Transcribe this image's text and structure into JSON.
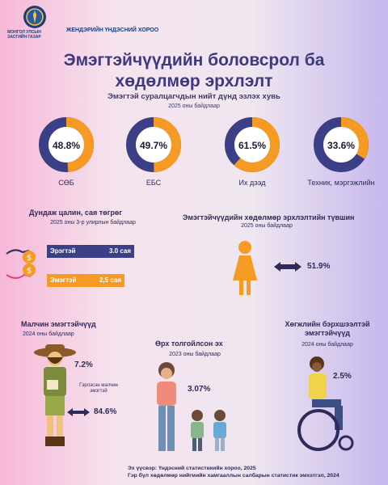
{
  "header": {
    "org_mn": "МОНГОЛ УЛСЫН ЗАСГИЙН ГАЗАР",
    "org_nso": "ЖЕНДЭРИЙН ҮНДЭСНИЙ ХОРОО"
  },
  "title": "Эмэгтэйчүүдийн боловсрол ба хөдөлмөр эрхлэлт",
  "education": {
    "title": "Эмэгтэй суралцагчдын нийт дүнд эзлэх хувь",
    "year": "2025 оны байдлаар",
    "items": [
      {
        "value": "48.8%",
        "fraction": 0.488,
        "label": "СӨБ"
      },
      {
        "value": "49.7%",
        "fraction": 0.497,
        "label": "ЕБС"
      },
      {
        "value": "61.5%",
        "fraction": 0.615,
        "label": "Их дээд"
      },
      {
        "value": "33.6%",
        "fraction": 0.336,
        "label": "Техник, мэргэжлийн"
      }
    ]
  },
  "wage": {
    "title": "Дундаж цалин, сая төгрөг",
    "year": "2025 оны 3-р улирлын байдлаар",
    "male_label": "Эрэгтэй",
    "male_value": "3.0 сая",
    "female_label": "Эмэгтэй",
    "female_value": "2,5 сая"
  },
  "employment": {
    "title": "Эмэгтэйчүүдийн хөдөлмөр эрхлэлтийн түвшин",
    "year": "2025 оны байдлаар",
    "value": "51.9%"
  },
  "herders": {
    "title": "Малчин эмэгтэйчүүд",
    "year": "2024 оны байдлаар",
    "value": "7.2%",
    "note": "Гэрлэсэн малчин эмэгтэй",
    "married_value": "84.6%"
  },
  "single_mothers": {
    "title": "Өрх толгойлсон эх",
    "year": "2023 оны байдлаар",
    "value": "3.07%"
  },
  "disability": {
    "title": "Хөгжлийн бэрхшээлтэй эмэгтэйчүүд",
    "year": "2024 оны байдлаар",
    "value": "2.5%"
  },
  "footer": {
    "source1": "Эх үүсвэр: Үндэсний статистикийн хороо, 2025",
    "source2": "Гэр бүл хөдөлмөр нийгмийн хамгааллын салбарын статистик эмхэтгэл, 2024"
  },
  "colors": {
    "navy": "#3b3f86",
    "orange": "#f59a23",
    "track": "#3b3f86"
  }
}
